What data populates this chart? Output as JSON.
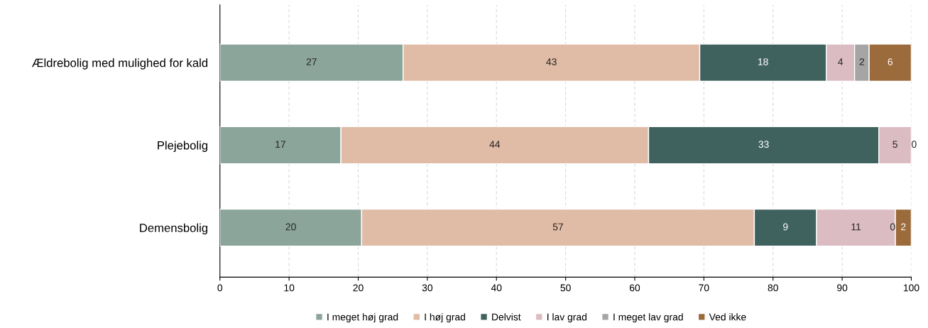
{
  "chart_data": {
    "type": "bar",
    "orientation": "horizontal",
    "stacked": true,
    "categories": [
      "Ældrebolig med mulighed for kald",
      "Plejebolig",
      "Demensbolig"
    ],
    "series": [
      {
        "name": "I meget høj grad",
        "color": "#8ba59b",
        "values": [
          26.5,
          17.5,
          20.5
        ],
        "value_labels": [
          "27",
          "17",
          "20"
        ]
      },
      {
        "name": "I høj grad",
        "color": "#e0bba5",
        "values": [
          42.9,
          44.5,
          56.8
        ],
        "value_labels": [
          "43",
          "44",
          "57"
        ]
      },
      {
        "name": "Delvist",
        "color": "#40625f",
        "values": [
          18.3,
          33.3,
          9.0
        ],
        "value_labels": [
          "18",
          "33",
          "9"
        ]
      },
      {
        "name": "I lav grad",
        "color": "#dbbcc3",
        "values": [
          4.1,
          4.7,
          11.4
        ],
        "value_labels": [
          "4",
          "5",
          "11"
        ]
      },
      {
        "name": "I meget lav grad",
        "color": "#a5a5a5",
        "values": [
          2.1,
          0,
          0
        ],
        "value_labels": [
          "2",
          "0",
          "0"
        ]
      },
      {
        "name": "Ved ikke",
        "color": "#9c6b3c",
        "values": [
          6.1,
          0,
          2.3
        ],
        "value_labels": [
          "6",
          null,
          "2"
        ]
      }
    ],
    "xlim": [
      0,
      100
    ],
    "xticks": [
      0,
      10,
      20,
      30,
      40,
      50,
      60,
      70,
      80,
      90,
      100
    ],
    "grid": "x",
    "legend": "bottom"
  }
}
